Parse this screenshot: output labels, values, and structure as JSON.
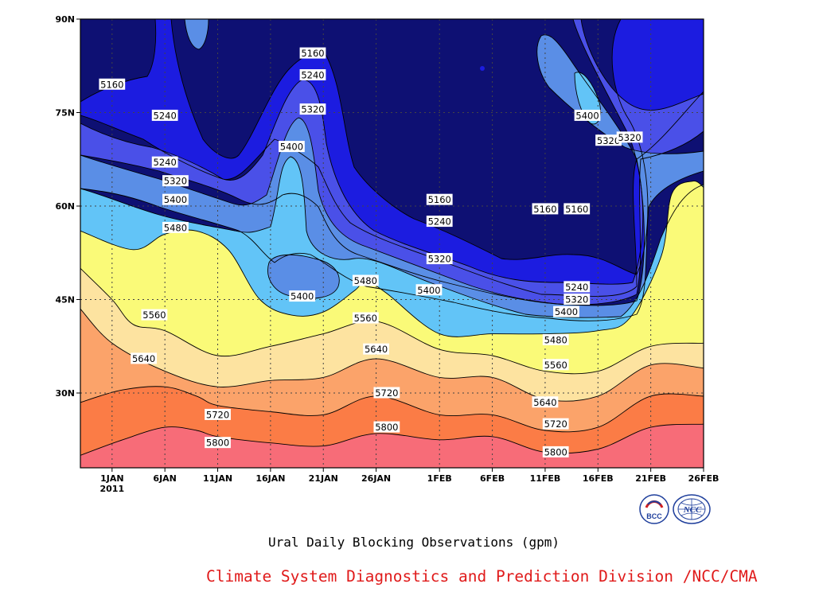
{
  "caption": "Ural Daily Blocking Observations (gpm)",
  "credit": "Climate System Diagnostics and Prediction Division /NCC/CMA",
  "logos": [
    {
      "name": "bcc-logo",
      "text": "BCC",
      "color": "#1f3f9c"
    },
    {
      "name": "ncc-logo",
      "text": "NCC",
      "color": "#1f3f9c"
    }
  ],
  "chart_data": {
    "type": "heatmap",
    "title": "Ural Daily Blocking Observations (gpm)",
    "xlabel": "",
    "ylabel": "",
    "x_range": [
      "2010-12-29",
      "2011-02-26"
    ],
    "ylim": [
      18,
      90
    ],
    "x_ticks": [
      {
        "date": "2011-01-01",
        "label": "1JAN",
        "sub": "2011"
      },
      {
        "date": "2011-01-06",
        "label": "6JAN"
      },
      {
        "date": "2011-01-11",
        "label": "11JAN"
      },
      {
        "date": "2011-01-16",
        "label": "16JAN"
      },
      {
        "date": "2011-01-21",
        "label": "21JAN"
      },
      {
        "date": "2011-01-26",
        "label": "26JAN"
      },
      {
        "date": "2011-02-01",
        "label": "1FEB"
      },
      {
        "date": "2011-02-06",
        "label": "6FEB"
      },
      {
        "date": "2011-02-11",
        "label": "11FEB"
      },
      {
        "date": "2011-02-16",
        "label": "16FEB"
      },
      {
        "date": "2011-02-21",
        "label": "21FEB"
      },
      {
        "date": "2011-02-26",
        "label": "26FEB"
      }
    ],
    "y_ticks": [
      {
        "value": 30,
        "label": "30N"
      },
      {
        "value": 45,
        "label": "45N"
      },
      {
        "value": 60,
        "label": "60N"
      },
      {
        "value": 75,
        "label": "75N"
      },
      {
        "value": 90,
        "label": "90N"
      }
    ],
    "grid": true,
    "contour_levels": [
      5160,
      5240,
      5320,
      5400,
      5480,
      5560,
      5640,
      5720,
      5800
    ],
    "fill_colors": {
      "<5160": "#0e1073",
      "5160-5240": "#1c1ce0",
      "5240-5320": "#4a50e8",
      "5320-5400": "#5a8ee6",
      "5400-5480": "#62c4f7",
      "5480-5560": "#fafa78",
      "5560-5640": "#fde3a0",
      "5640-5720": "#fba36a",
      "5720-5800": "#fb7c46",
      ">5800": "#f76c78"
    },
    "series": [
      {
        "level": 5800,
        "points": [
          [
            "2010-12-29",
            20
          ],
          [
            "2011-01-02",
            22.5
          ],
          [
            "2011-01-06",
            24.5
          ],
          [
            "2011-01-09",
            24
          ],
          [
            "2011-01-11",
            23
          ],
          [
            "2011-01-16",
            22
          ],
          [
            "2011-01-21",
            21.5
          ],
          [
            "2011-01-26",
            23.5
          ],
          [
            "2011-02-01",
            22.5
          ],
          [
            "2011-02-06",
            23
          ],
          [
            "2011-02-11",
            20.5
          ],
          [
            "2011-02-16",
            21
          ],
          [
            "2011-02-21",
            24.5
          ],
          [
            "2011-02-26",
            25
          ]
        ]
      },
      {
        "level": 5720,
        "points": [
          [
            "2010-12-29",
            28.5
          ],
          [
            "2011-01-02",
            30.5
          ],
          [
            "2011-01-06",
            31
          ],
          [
            "2011-01-09",
            29.5
          ],
          [
            "2011-01-11",
            28
          ],
          [
            "2011-01-16",
            27
          ],
          [
            "2011-01-21",
            26.5
          ],
          [
            "2011-01-26",
            29.5
          ],
          [
            "2011-02-01",
            26.5
          ],
          [
            "2011-02-06",
            26.5
          ],
          [
            "2011-02-11",
            24
          ],
          [
            "2011-02-16",
            24.5
          ],
          [
            "2011-02-21",
            29.5
          ],
          [
            "2011-02-26",
            29.5
          ]
        ]
      },
      {
        "level": 5640,
        "points": [
          [
            "2010-12-29",
            43.5
          ],
          [
            "2011-01-01",
            38
          ],
          [
            "2011-01-06",
            33.5
          ],
          [
            "2011-01-11",
            31
          ],
          [
            "2011-01-16",
            32
          ],
          [
            "2011-01-21",
            32.5
          ],
          [
            "2011-01-26",
            35.5
          ],
          [
            "2011-02-01",
            32.5
          ],
          [
            "2011-02-06",
            32.5
          ],
          [
            "2011-02-11",
            29
          ],
          [
            "2011-02-16",
            29.5
          ],
          [
            "2011-02-21",
            34.5
          ],
          [
            "2011-02-26",
            34
          ]
        ]
      },
      {
        "level": 5560,
        "points": [
          [
            "2010-12-29",
            50
          ],
          [
            "2011-01-01",
            45
          ],
          [
            "2011-01-03",
            41
          ],
          [
            "2011-01-06",
            40
          ],
          [
            "2011-01-11",
            36
          ],
          [
            "2011-01-16",
            37.5
          ],
          [
            "2011-01-21",
            39.5
          ],
          [
            "2011-01-26",
            41.5
          ],
          [
            "2011-02-01",
            37
          ],
          [
            "2011-02-06",
            36
          ],
          [
            "2011-02-11",
            33.5
          ],
          [
            "2011-02-16",
            33.5
          ],
          [
            "2011-02-21",
            37.5
          ],
          [
            "2011-02-26",
            38
          ]
        ]
      },
      {
        "level": 5480,
        "points": [
          [
            "2010-12-29",
            56
          ],
          [
            "2011-01-03",
            53
          ],
          [
            "2011-01-06",
            55.5
          ],
          [
            "2011-01-09",
            56
          ],
          [
            "2011-01-12",
            53
          ],
          [
            "2011-01-15",
            45
          ],
          [
            "2011-01-18",
            42.5
          ],
          [
            "2011-01-21",
            43
          ],
          [
            "2011-01-24",
            46.5
          ],
          [
            "2011-01-25",
            48
          ],
          [
            "2011-01-27",
            46
          ],
          [
            "2011-02-01",
            39.5
          ],
          [
            "2011-02-06",
            39.5
          ],
          [
            "2011-02-11",
            39.5
          ],
          [
            "2011-02-16",
            40
          ],
          [
            "2011-02-19",
            42
          ],
          [
            "2011-02-22",
            52
          ],
          [
            "2011-02-23",
            62
          ],
          [
            "2011-02-25",
            64
          ],
          [
            "2011-02-26",
            63
          ]
        ]
      }
    ],
    "labels": [
      {
        "text": "5160",
        "date": "2011-01-01",
        "lat": 79.5
      },
      {
        "text": "5240",
        "date": "2011-01-06",
        "lat": 74.5
      },
      {
        "text": "5240",
        "date": "2011-01-06",
        "lat": 67
      },
      {
        "text": "5320",
        "date": "2011-01-07",
        "lat": 64
      },
      {
        "text": "5400",
        "date": "2011-01-07",
        "lat": 61
      },
      {
        "text": "5480",
        "date": "2011-01-07",
        "lat": 56.5
      },
      {
        "text": "5560",
        "date": "2011-01-05",
        "lat": 42.5
      },
      {
        "text": "5640",
        "date": "2011-01-04",
        "lat": 35.5
      },
      {
        "text": "5720",
        "date": "2011-01-11",
        "lat": 26.5
      },
      {
        "text": "5800",
        "date": "2011-01-11",
        "lat": 22
      },
      {
        "text": "5160",
        "date": "2011-01-20",
        "lat": 84.5
      },
      {
        "text": "5240",
        "date": "2011-01-20",
        "lat": 81
      },
      {
        "text": "5320",
        "date": "2011-01-20",
        "lat": 75.5
      },
      {
        "text": "5400",
        "date": "2011-01-18",
        "lat": 69.5
      },
      {
        "text": "5400",
        "date": "2011-01-19",
        "lat": 45.5
      },
      {
        "text": "5480",
        "date": "2011-01-25",
        "lat": 48
      },
      {
        "text": "5560",
        "date": "2011-01-25",
        "lat": 42
      },
      {
        "text": "5640",
        "date": "2011-01-26",
        "lat": 37
      },
      {
        "text": "5720",
        "date": "2011-01-27",
        "lat": 30
      },
      {
        "text": "5800",
        "date": "2011-01-27",
        "lat": 24.5
      },
      {
        "text": "5160",
        "date": "2011-02-01",
        "lat": 61
      },
      {
        "text": "5240",
        "date": "2011-02-01",
        "lat": 57.5
      },
      {
        "text": "5320",
        "date": "2011-02-01",
        "lat": 51.5
      },
      {
        "text": "5400",
        "date": "2011-01-31",
        "lat": 46.5
      },
      {
        "text": "5160",
        "date": "2011-02-11",
        "lat": 59.5
      },
      {
        "text": "5160",
        "date": "2011-02-14",
        "lat": 59.5
      },
      {
        "text": "5400",
        "date": "2011-02-15",
        "lat": 74.5
      },
      {
        "text": "5320",
        "date": "2011-02-17",
        "lat": 70.5
      },
      {
        "text": "5320",
        "date": "2011-02-19",
        "lat": 71
      },
      {
        "text": "5240",
        "date": "2011-02-14",
        "lat": 47
      },
      {
        "text": "5320",
        "date": "2011-02-14",
        "lat": 45
      },
      {
        "text": "5400",
        "date": "2011-02-13",
        "lat": 43
      },
      {
        "text": "5480",
        "date": "2011-02-12",
        "lat": 38.5
      },
      {
        "text": "5560",
        "date": "2011-02-12",
        "lat": 34.5
      },
      {
        "text": "5640",
        "date": "2011-02-11",
        "lat": 28.5
      },
      {
        "text": "5720",
        "date": "2011-02-12",
        "lat": 25
      },
      {
        "text": "5800",
        "date": "2011-02-12",
        "lat": 20.5
      }
    ]
  }
}
